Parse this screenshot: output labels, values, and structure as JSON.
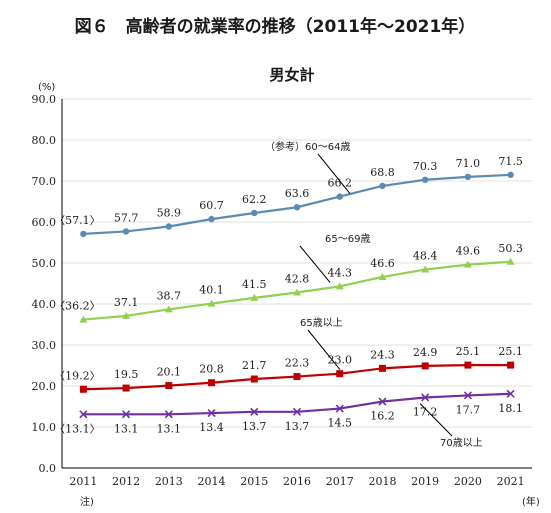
{
  "page_title": "図６　高齢者の就業率の推移（2011年～2021年）",
  "chart_data": {
    "type": "line",
    "title": "男女計",
    "ylabel_unit": "(%)",
    "xlabel_unit": "(年)",
    "x_note": "注)",
    "x": [
      "2011",
      "2012",
      "2013",
      "2014",
      "2015",
      "2016",
      "2017",
      "2018",
      "2019",
      "2020",
      "2021"
    ],
    "ylim": [
      0,
      90
    ],
    "yticks": [
      "0.0",
      "10.0",
      "20.0",
      "30.0",
      "40.0",
      "50.0",
      "60.0",
      "70.0",
      "80.0",
      "90.0"
    ],
    "grid": true,
    "series": [
      {
        "name": "（参考）60～64歳",
        "color": "#5b8bb5",
        "marker": "circle",
        "values": [
          57.1,
          57.7,
          58.9,
          60.7,
          62.2,
          63.6,
          66.2,
          68.8,
          70.3,
          71.0,
          71.5
        ],
        "labels": [
          "〈57.1〉",
          "57.7",
          "58.9",
          "60.7",
          "62.2",
          "63.6",
          "66.2",
          "68.8",
          "70.3",
          "71.0",
          "71.5"
        ]
      },
      {
        "name": "65～69歳",
        "color": "#92d050",
        "marker": "triangle",
        "values": [
          36.2,
          37.1,
          38.7,
          40.1,
          41.5,
          42.8,
          44.3,
          46.6,
          48.4,
          49.6,
          50.3
        ],
        "labels": [
          "〈36.2〉",
          "37.1",
          "38.7",
          "40.1",
          "41.5",
          "42.8",
          "44.3",
          "46.6",
          "48.4",
          "49.6",
          "50.3"
        ]
      },
      {
        "name": "65歳以上",
        "color": "#c00000",
        "marker": "square",
        "values": [
          19.2,
          19.5,
          20.1,
          20.8,
          21.7,
          22.3,
          23.0,
          24.3,
          24.9,
          25.1,
          25.1
        ],
        "labels": [
          "〈19.2〉",
          "19.5",
          "20.1",
          "20.8",
          "21.7",
          "22.3",
          "23.0",
          "24.3",
          "24.9",
          "25.1",
          "25.1"
        ]
      },
      {
        "name": "70歳以上",
        "color": "#7030a0",
        "marker": "cross",
        "values": [
          13.1,
          13.1,
          13.1,
          13.4,
          13.7,
          13.7,
          14.5,
          16.2,
          17.2,
          17.7,
          18.1
        ],
        "labels": [
          "〈13.1〉",
          "13.1",
          "13.1",
          "13.4",
          "13.7",
          "13.7",
          "14.5",
          "16.2",
          "17.2",
          "17.7",
          "18.1"
        ]
      }
    ]
  }
}
